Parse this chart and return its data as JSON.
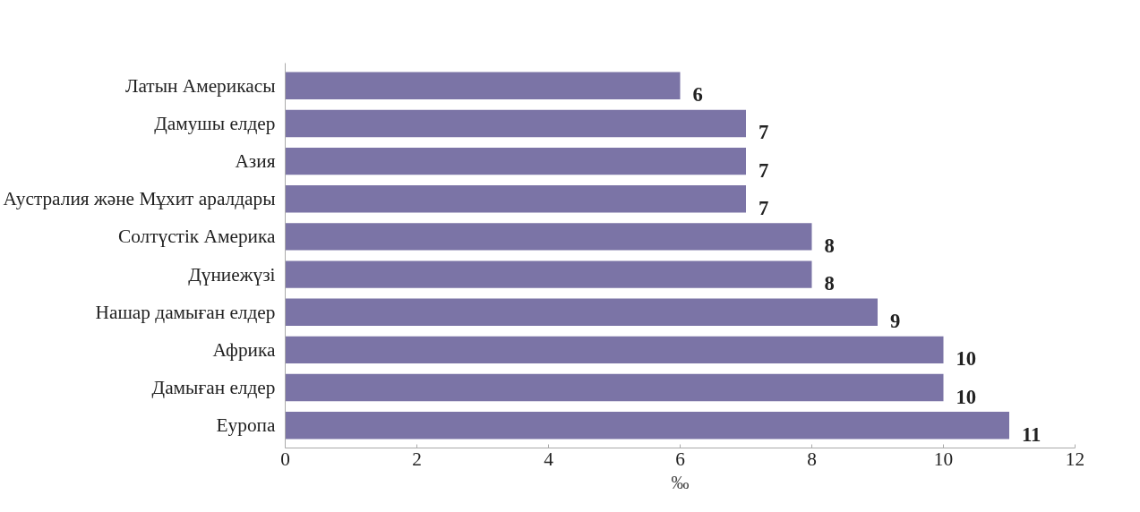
{
  "chart_data": {
    "type": "bar",
    "orientation": "horizontal",
    "xlabel": "‰",
    "categories": [
      "Латын Америкасы",
      "Дамушы елдер",
      "Азия",
      "Аустралия және Мұхит аралдары",
      "Солтүстік Америка",
      "Дүниежүзі",
      "Нашар дамыған елдер",
      "Африка",
      "Дамыған елдер",
      "Еуропа"
    ],
    "values": [
      6,
      7,
      7,
      7,
      8,
      8,
      9,
      10,
      10,
      11
    ],
    "color": "#7b74a6",
    "xlim": [
      0,
      12
    ],
    "xticks": [
      0,
      2,
      4,
      6,
      8,
      10,
      12
    ],
    "data_labels": true,
    "grid": false
  }
}
